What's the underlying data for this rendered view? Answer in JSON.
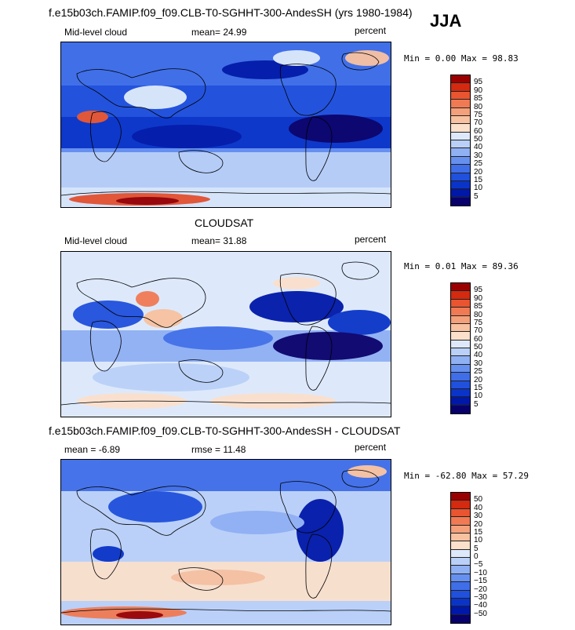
{
  "season": "JJA",
  "colors": {
    "levels_abs": [
      "#08006b",
      "#0018a8",
      "#0a34c8",
      "#2050dc",
      "#3f6ee8",
      "#6690f0",
      "#90b0f4",
      "#bad0f8",
      "#dde9fb",
      "#fbe0cc",
      "#f8c1a0",
      "#f4a07a",
      "#f07a54",
      "#e85530",
      "#d32a10",
      "#9a0000"
    ],
    "levels_diff": [
      "#08006b",
      "#0018a8",
      "#0a34c8",
      "#2050dc",
      "#3f6ee8",
      "#6690f0",
      "#90b0f4",
      "#bad0f8",
      "#dde9fb",
      "#fbe0cc",
      "#f8c1a0",
      "#f4a07a",
      "#f07a54",
      "#e85530",
      "#d32a10",
      "#9a0000"
    ]
  },
  "panels": [
    {
      "id": "model",
      "title": "f.e15b03ch.FAMIP.f09_f09.CLB-T0-SGHHT-300-AndesSH (yrs 1980-1984)",
      "left_label": "Mid-level cloud",
      "center_label": "mean=  24.99",
      "units": "percent",
      "minmax": "Min =   0.00 Max =  98.83",
      "colorbar_labels": [
        "95",
        "90",
        "85",
        "80",
        "75",
        "70",
        "60",
        "50",
        "40",
        "30",
        "25",
        "20",
        "15",
        "10",
        "5"
      ]
    },
    {
      "id": "obs",
      "title": "CLOUDSAT",
      "left_label": "Mid-level cloud",
      "center_label": "mean=  31.88",
      "units": "percent",
      "minmax": "Min =   0.01 Max =  89.36",
      "colorbar_labels": [
        "95",
        "90",
        "85",
        "80",
        "75",
        "70",
        "60",
        "50",
        "40",
        "30",
        "25",
        "20",
        "15",
        "10",
        "5"
      ]
    },
    {
      "id": "diff",
      "title": "f.e15b03ch.FAMIP.f09_f09.CLB-T0-SGHHT-300-AndesSH - CLOUDSAT",
      "left_label": "mean =  -6.89",
      "center_label": "rmse =  11.48",
      "units": "percent",
      "minmax": "Min = -62.80 Max =  57.29",
      "colorbar_labels": [
        "50",
        "40",
        "30",
        "20",
        "15",
        "10",
        "5",
        "0",
        "−5",
        "−10",
        "−15",
        "−20",
        "−30",
        "−40",
        "−50"
      ]
    }
  ]
}
